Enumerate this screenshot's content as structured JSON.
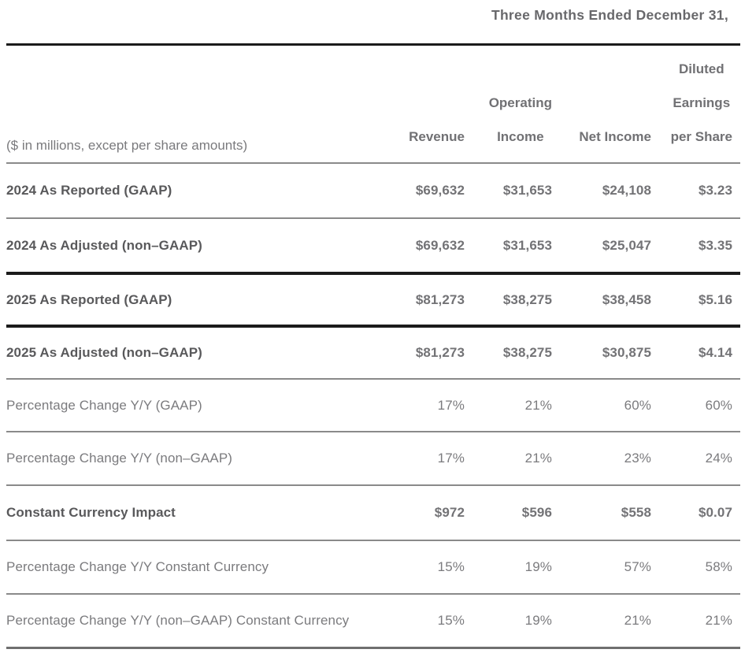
{
  "colors": {
    "heavy_rule": "#1b1b1b",
    "light_rule": "#8a8a8a",
    "bottom_rule": "#6f6f6f",
    "strong_text": "#59595b",
    "regular_text": "#7b7b7e",
    "header_text": "#717174"
  },
  "chart_data": {
    "type": "table",
    "title": "Three Months Ended December 31,",
    "row_label_header": "($ in millions, except per share amounts)",
    "columns": [
      "Revenue",
      "Operating Income",
      "Net Income",
      "Diluted Earnings per Share"
    ],
    "column_headers": [
      {
        "lines": [
          "Revenue"
        ]
      },
      {
        "lines": [
          "Operating",
          "Income"
        ]
      },
      {
        "lines": [
          "Net Income"
        ]
      },
      {
        "lines": [
          "Diluted",
          "Earnings",
          "per Share"
        ]
      }
    ],
    "rows": [
      {
        "label": "2024 As Reported (GAAP)",
        "values": [
          "$69,632",
          "$31,653",
          "$24,108",
          "$3.23"
        ]
      },
      {
        "label": "2024 As Adjusted (non–GAAP)",
        "values": [
          "$69,632",
          "$31,653",
          "$25,047",
          "$3.35"
        ]
      },
      {
        "label": "2025 As Reported (GAAP)",
        "values": [
          "$81,273",
          "$38,275",
          "$38,458",
          "$5.16"
        ]
      },
      {
        "label": "2025 As Adjusted (non–GAAP)",
        "values": [
          "$81,273",
          "$38,275",
          "$30,875",
          "$4.14"
        ]
      },
      {
        "label": "Percentage Change Y/Y (GAAP)",
        "values": [
          "17%",
          "21%",
          "60%",
          "60%"
        ]
      },
      {
        "label": "Percentage Change Y/Y (non–GAAP)",
        "values": [
          "17%",
          "21%",
          "23%",
          "24%"
        ]
      },
      {
        "label": "Constant Currency Impact",
        "values": [
          "$972",
          "$596",
          "$558",
          "$0.07"
        ]
      },
      {
        "label": "Percentage Change Y/Y Constant Currency",
        "values": [
          "15%",
          "19%",
          "57%",
          "58%"
        ]
      },
      {
        "label": "Percentage Change Y/Y (non–GAAP) Constant Currency",
        "values": [
          "15%",
          "19%",
          "21%",
          "21%"
        ]
      }
    ]
  }
}
